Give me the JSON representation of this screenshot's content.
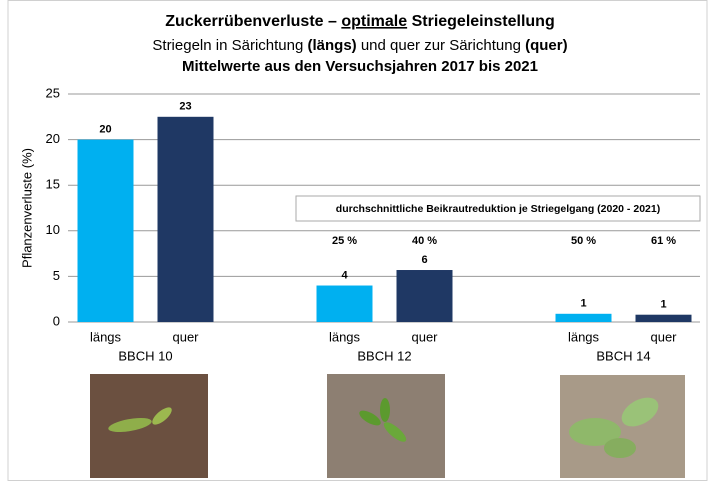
{
  "chart_data": {
    "type": "bar",
    "title": [
      "Zuckerrübenverluste – ",
      "optimale",
      " Striegeleinstellung"
    ],
    "subtitle": [
      "Striegeln in Särichtung ",
      "(längs)",
      " und quer zur Särichtung ",
      "(quer)"
    ],
    "subtitle2": "Mittelwerte aus den Versuchsjahren 2017 bis 2021",
    "y_label": "Pflanzenverluste (%)",
    "groups": [
      "BBCH 10",
      "BBCH 12",
      "BBCH 14"
    ],
    "series": [
      {
        "name": "längs",
        "color": "#00b0f0",
        "values": [
          20,
          4,
          0.9
        ],
        "value_labels": [
          "20",
          "4",
          "1"
        ],
        "reduction_labels": [
          null,
          "25 %",
          "50 %"
        ]
      },
      {
        "name": "quer",
        "color": "#1f3864",
        "values": [
          22.5,
          5.7,
          0.8
        ],
        "value_labels": [
          "23",
          "6",
          "1"
        ],
        "reduction_labels": [
          null,
          "40 %",
          "61 %"
        ]
      }
    ],
    "annotation": "durchschnittliche Beikrautreduktion je Striegelgang (2020 - 2021)",
    "ylim": [
      0,
      25
    ],
    "yticks": [
      0,
      5,
      10,
      15,
      20,
      25
    ],
    "grid": true
  }
}
